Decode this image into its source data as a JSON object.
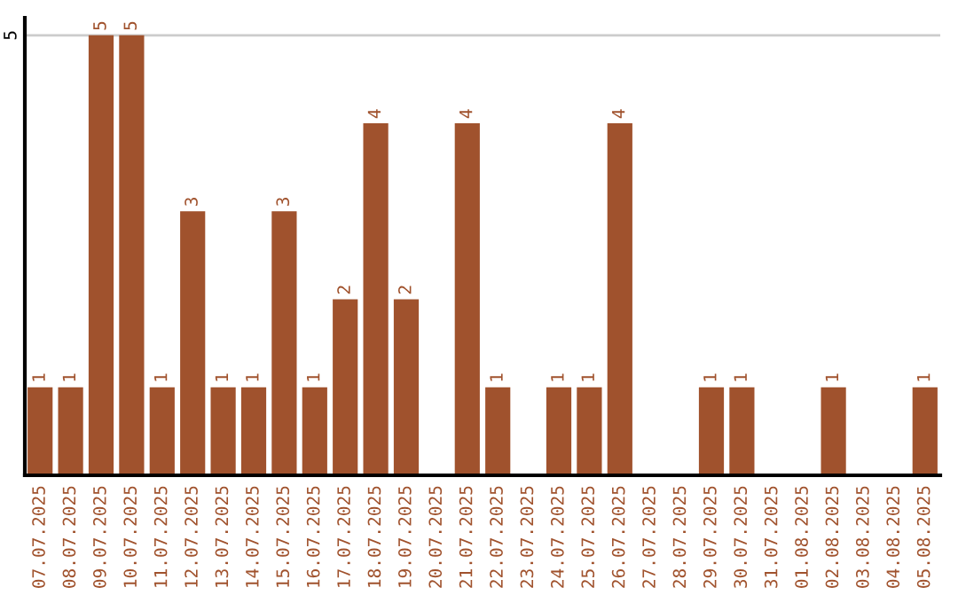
{
  "chart_data": {
    "type": "bar",
    "categories": [
      "07.07.2025",
      "08.07.2025",
      "09.07.2025",
      "10.07.2025",
      "11.07.2025",
      "12.07.2025",
      "13.07.2025",
      "14.07.2025",
      "15.07.2025",
      "16.07.2025",
      "17.07.2025",
      "18.07.2025",
      "19.07.2025",
      "20.07.2025",
      "21.07.2025",
      "22.07.2025",
      "23.07.2025",
      "24.07.2025",
      "25.07.2025",
      "26.07.2025",
      "27.07.2025",
      "28.07.2025",
      "29.07.2025",
      "30.07.2025",
      "31.07.2025",
      "01.08.2025",
      "02.08.2025",
      "03.08.2025",
      "04.08.2025",
      "05.08.2025"
    ],
    "values": [
      1,
      1,
      5,
      5,
      1,
      3,
      1,
      1,
      3,
      1,
      2,
      4,
      2,
      null,
      4,
      1,
      null,
      1,
      1,
      4,
      null,
      null,
      1,
      1,
      null,
      null,
      1,
      null,
      null,
      1
    ],
    "color": "#a0522d",
    "ylim": [
      0,
      5.2
    ],
    "yticks": [
      5
    ],
    "grid": "y",
    "data_labels": true
  }
}
